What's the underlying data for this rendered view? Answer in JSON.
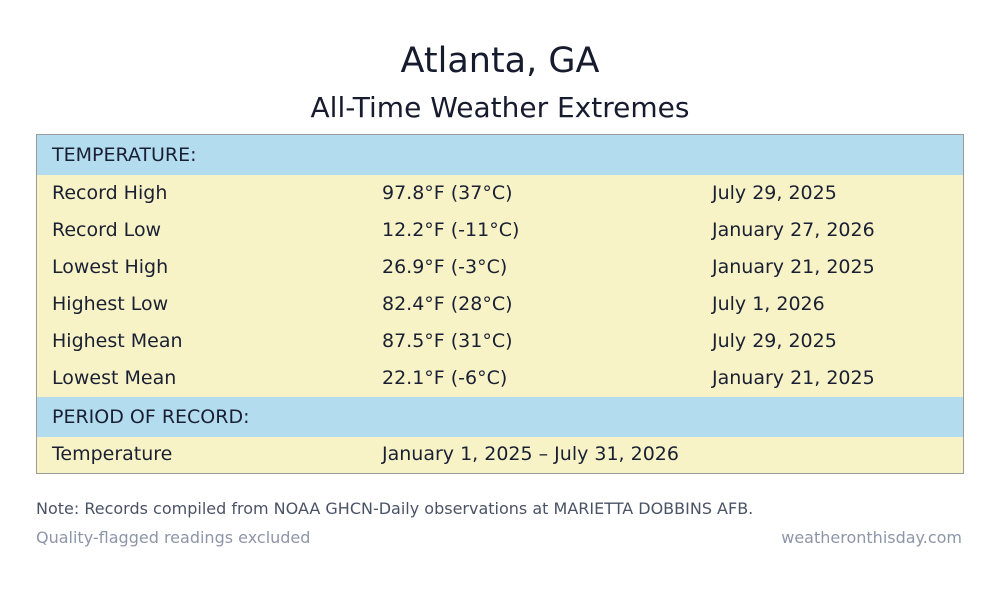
{
  "header": {
    "title": "Atlanta, GA",
    "subtitle": "All-Time Weather Extremes"
  },
  "sections": {
    "temperature": {
      "label": "TEMPERATURE:",
      "rows": [
        {
          "name": "Record High",
          "value": "97.8°F (37°C)",
          "date": "July 29, 2025"
        },
        {
          "name": "Record Low",
          "value": "12.2°F (-11°C)",
          "date": "January 27, 2026"
        },
        {
          "name": "Lowest High",
          "value": "26.9°F (-3°C)",
          "date": "January 21, 2025"
        },
        {
          "name": "Highest Low",
          "value": "82.4°F (28°C)",
          "date": "July 1, 2026"
        },
        {
          "name": "Highest Mean",
          "value": "87.5°F (31°C)",
          "date": "July 29, 2025"
        },
        {
          "name": "Lowest Mean",
          "value": "22.1°F (-6°C)",
          "date": "January 21, 2025"
        }
      ]
    },
    "period": {
      "label": "PERIOD OF RECORD:",
      "rows": [
        {
          "name": "Temperature",
          "value": "January 1, 2025 – July 31, 2026"
        }
      ]
    }
  },
  "footer": {
    "note": "Note: Records compiled from NOAA GHCN-Daily observations at MARIETTA DOBBINS AFB.",
    "quality": "Quality-flagged readings excluded",
    "site": "weatheronthisday.com"
  },
  "colors": {
    "section_header_bg": "#b3ddef",
    "row_bg": "#f8f3c6",
    "title_text": "#161b2e",
    "muted_text": "#8d96a8"
  }
}
